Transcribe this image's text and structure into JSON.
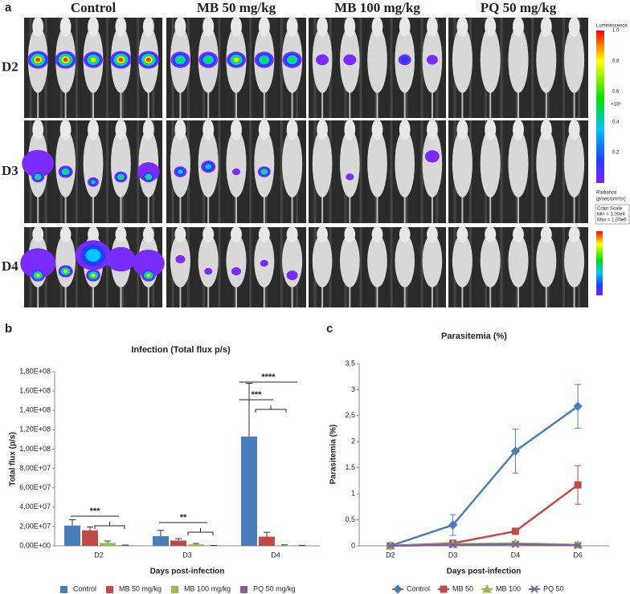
{
  "figure_a": {
    "label": "a",
    "columns": [
      "Control",
      "MB 50 mg/kg",
      "MB 100 mg/kg",
      "PQ 50 mg/kg"
    ],
    "rows": [
      "D2",
      "D3",
      "D4"
    ],
    "scale": {
      "title": "Luminescence",
      "ticks": [
        "1.0",
        "0.8",
        "0.6",
        "0.4",
        "0.2"
      ],
      "unit_power": "×10⁶",
      "radiance": "Radiance",
      "radiance_unit": "(p/sec/cm²/sr)",
      "color_scale": "Color Scale",
      "min": "Min = 3.00e4",
      "max": "Max = 1.00e6"
    }
  },
  "chart_data": [
    {
      "type": "bar",
      "panel": "b",
      "title": "Infection (Total flux p/s)",
      "y_label": "Total flux (p/s)",
      "x_label": "Days post-infection",
      "categories": [
        "D2",
        "D3",
        "D4"
      ],
      "series": [
        {
          "name": "Control",
          "color": "#4a7ebb",
          "values": [
            21000000,
            10000000,
            113000000
          ],
          "errors": [
            6000000,
            6000000,
            55000000
          ]
        },
        {
          "name": "MB 50 mg/kg",
          "color": "#be4b48",
          "values": [
            16000000,
            5500000,
            9500000
          ],
          "errors": [
            3500000,
            2000000,
            4500000
          ]
        },
        {
          "name": "MB 100 mg/kg",
          "color": "#98b954",
          "values": [
            3000000,
            1500000,
            500000
          ],
          "errors": [
            2000000,
            1000000,
            500000
          ]
        },
        {
          "name": "PQ 50 mg/kg",
          "color": "#7d60a0",
          "values": [
            500000,
            200000,
            300000
          ],
          "errors": [
            300000,
            200000,
            200000
          ]
        }
      ],
      "ylim": [
        0,
        180000000
      ],
      "yticks": [
        {
          "value": 0,
          "label": "0,00E+00"
        },
        {
          "value": 20000000,
          "label": "2,00E+07"
        },
        {
          "value": 40000000,
          "label": "4,00E+07"
        },
        {
          "value": 60000000,
          "label": "6,00E+07"
        },
        {
          "value": 80000000,
          "label": "8,00E+07"
        },
        {
          "value": 100000000,
          "label": "1,00E+08"
        },
        {
          "value": 120000000,
          "label": "1,20E+08"
        },
        {
          "value": 140000000,
          "label": "1,40E+08"
        },
        {
          "value": 160000000,
          "label": "1,60E+08"
        },
        {
          "value": 180000000,
          "label": "1,80E+08"
        }
      ],
      "grid": false,
      "annotations": [
        "***",
        "**",
        "***",
        "****"
      ]
    },
    {
      "type": "line",
      "panel": "c",
      "title": "Parasitemia (%)",
      "y_label": "Parasitemia (%)",
      "x_label": "Days post-infection",
      "categories": [
        "D2",
        "D3",
        "D4",
        "D6"
      ],
      "series": [
        {
          "name": "Control",
          "color": "#4a7ebb",
          "marker": "diamond",
          "values": [
            0,
            0.4,
            1.82,
            2.68
          ],
          "errors": [
            0,
            0.2,
            0.42,
            0.42
          ]
        },
        {
          "name": "MB 50",
          "color": "#be4b48",
          "marker": "square",
          "values": [
            0,
            0.05,
            0.28,
            1.17
          ],
          "errors": [
            0,
            0.03,
            0.05,
            0.37
          ]
        },
        {
          "name": "MB 100",
          "color": "#98b954",
          "marker": "triangle",
          "values": [
            0,
            0.03,
            0.05,
            0.02
          ],
          "errors": [
            0,
            0.01,
            0.02,
            0.01
          ]
        },
        {
          "name": "PQ 50",
          "color": "#7d60a0",
          "marker": "x",
          "values": [
            0,
            0.02,
            0.03,
            0.01
          ],
          "errors": [
            0,
            0.01,
            0.01,
            0.01
          ]
        }
      ],
      "ylim": [
        0,
        3.5
      ],
      "yticks": [
        0,
        {
          "value": 0.5,
          "label": "0,5"
        },
        1,
        {
          "value": 1.5,
          "label": "1,5"
        },
        2,
        {
          "value": 2.5,
          "label": "2,5"
        },
        3,
        {
          "value": 3.5,
          "label": "3,5"
        }
      ],
      "grid": false
    }
  ]
}
